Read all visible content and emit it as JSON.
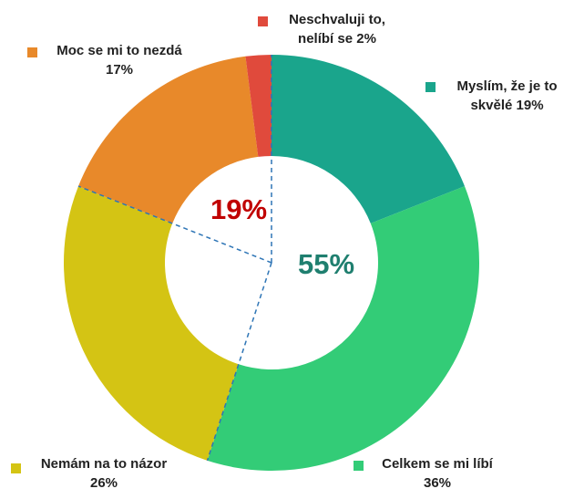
{
  "chart_data": {
    "type": "donut",
    "categories": [
      "Myslím, že je to skvělé",
      "Celkem se mi líbí",
      "Nemám na to názor",
      "Moc se mi to nezdá",
      "Neschvaluji to, nelíbí se"
    ],
    "values": [
      19,
      36,
      26,
      17,
      2
    ],
    "value_labels": [
      "19%",
      "36%",
      "26%",
      "17%",
      "2%"
    ],
    "colors": [
      "#1aa58c",
      "#33cc77",
      "#d4c414",
      "#e8892a",
      "#e04a3c"
    ],
    "annotations": [
      {
        "text": "55%",
        "color": "#1f7f6f"
      },
      {
        "text": "19%",
        "color": "#c00000"
      }
    ]
  }
}
